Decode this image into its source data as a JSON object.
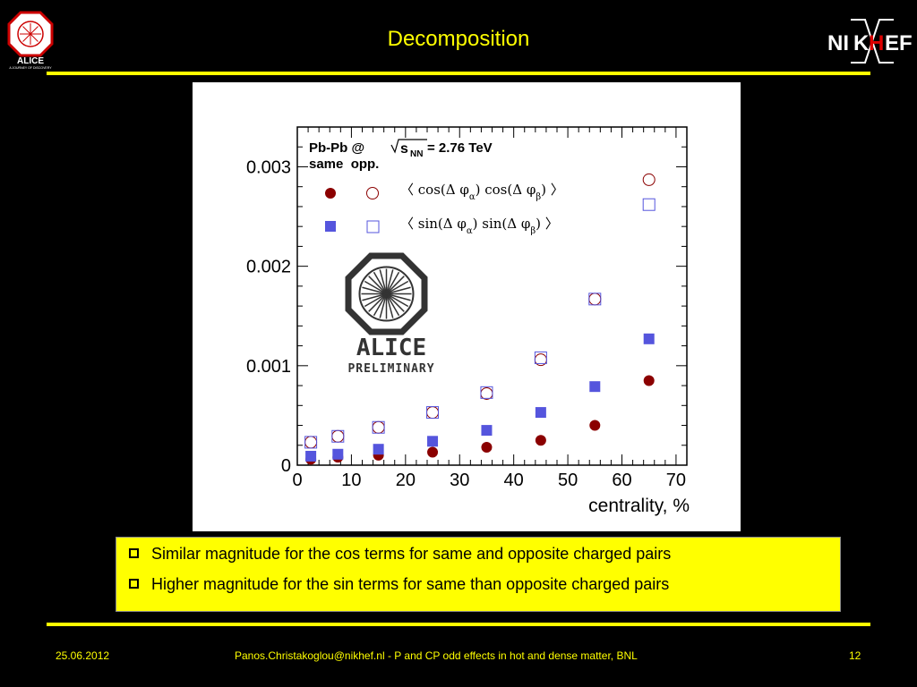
{
  "slide": {
    "title": "Decomposition",
    "alice_logo_text": "ALICE",
    "alice_logo_subtext": "A JOURNEY OF DISCOVERY",
    "nikhef_logo": {
      "text_n": "NI",
      "text_k": "K",
      "text_h": "H",
      "text_ef": "EF"
    },
    "footer": {
      "date": "25.06.2012",
      "author": "Panos.Christakoglou@nikhef.nl - P and CP odd effects in hot and dense matter, BNL",
      "page": "12"
    },
    "bullets": [
      "Similar magnitude for the cos terms for same and opposite charged pairs",
      "Higher magnitude for the sin terms for same than opposite charged pairs"
    ]
  },
  "chart_data": {
    "type": "scatter",
    "xlabel": "centrality, %",
    "ylabel": "",
    "xlim": [
      0,
      72
    ],
    "ylim": [
      0,
      0.0034
    ],
    "x_ticks": [
      "0",
      "10",
      "20",
      "30",
      "40",
      "50",
      "60",
      "70"
    ],
    "y_ticks": [
      "0",
      "0.001",
      "0.002",
      "0.003"
    ],
    "annotation": {
      "line1_prefix": "Pb-Pb @ ",
      "line1_s": "s",
      "line1_sub": "NN",
      "line1_suffix": " = 2.76 TeV",
      "line2": "same  opp."
    },
    "watermark": {
      "text1": "ALICE",
      "text2": "PRELIMINARY"
    },
    "legend_labels": {
      "cos": [
        "〈 cos(Δ φ",
        "α",
        ") cos(Δ φ",
        "β",
        ") 〉"
      ],
      "sin": [
        "〈 sin(Δ φ",
        "α",
        ") sin(Δ φ",
        "β",
        ") 〉"
      ]
    },
    "colors": {
      "cos": "#8b0000",
      "sin": "#5555dd"
    },
    "series": [
      {
        "name": "same",
        "term": "cos",
        "marker": "filled-circle",
        "x": [
          2.5,
          7.5,
          15,
          25,
          35,
          45,
          55,
          65
        ],
        "y": [
          6e-05,
          8e-05,
          0.0001,
          0.00013,
          0.00018,
          0.00025,
          0.0004,
          0.00085
        ]
      },
      {
        "name": "opp.",
        "term": "cos",
        "marker": "open-circle",
        "x": [
          2.5,
          7.5,
          15,
          25,
          35,
          45,
          55,
          65
        ],
        "y": [
          0.00023,
          0.00029,
          0.00038,
          0.00053,
          0.00072,
          0.00106,
          0.00167,
          0.00287
        ]
      },
      {
        "name": "same",
        "term": "sin",
        "marker": "filled-square",
        "x": [
          2.5,
          7.5,
          15,
          25,
          35,
          45,
          55,
          65
        ],
        "y": [
          9e-05,
          0.00011,
          0.00016,
          0.00024,
          0.00035,
          0.00053,
          0.00079,
          0.00127
        ]
      },
      {
        "name": "opp.",
        "term": "sin",
        "marker": "open-square",
        "x": [
          2.5,
          7.5,
          15,
          25,
          35,
          45,
          55,
          65
        ],
        "y": [
          0.00023,
          0.00029,
          0.00038,
          0.00053,
          0.00073,
          0.00108,
          0.00167,
          0.00262
        ]
      }
    ]
  }
}
